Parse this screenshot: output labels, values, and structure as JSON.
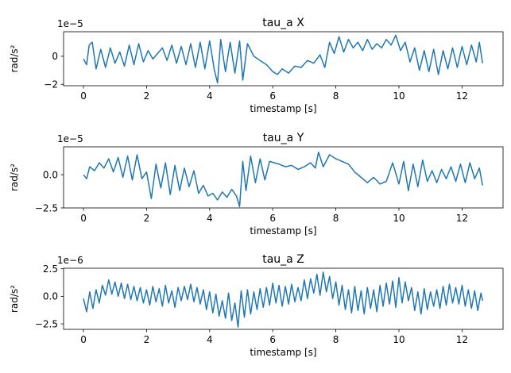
{
  "chart_data": [
    {
      "type": "line",
      "title": "tau_a X",
      "xlabel": "timestamp [s]",
      "ylabel": "rad/s²",
      "offset_text": "1e−5",
      "xlim": [
        -0.63,
        13.3
      ],
      "ylim": [
        -2.1,
        1.75
      ],
      "x_ticks": [
        0,
        2,
        4,
        6,
        8,
        10,
        12
      ],
      "y_ticks": [
        -2,
        0
      ],
      "x_tick_labels": [
        "0",
        "2",
        "4",
        "6",
        "8",
        "10",
        "12"
      ],
      "y_tick_labels": [
        "−2",
        "0"
      ],
      "series_color": "#1f77b4",
      "series": [
        {
          "x": [
            0.0,
            0.1,
            0.18,
            0.28,
            0.4,
            0.55,
            0.7,
            0.85,
            1.0,
            1.15,
            1.3,
            1.45,
            1.6,
            1.75,
            1.9,
            2.05,
            2.2,
            2.35,
            2.5,
            2.65,
            2.8,
            2.95,
            3.1,
            3.25,
            3.4,
            3.55,
            3.7,
            3.85,
            4.0,
            4.15,
            4.25,
            4.35,
            4.5,
            4.65,
            4.8,
            4.95,
            5.05,
            5.2,
            5.4,
            5.6,
            5.8,
            6.0,
            6.15,
            6.3,
            6.5,
            6.7,
            6.9,
            7.1,
            7.3,
            7.5,
            7.65,
            7.8,
            7.95,
            8.1,
            8.25,
            8.4,
            8.55,
            8.7,
            8.85,
            9.0,
            9.15,
            9.3,
            9.45,
            9.6,
            9.75,
            9.9,
            10.05,
            10.2,
            10.35,
            10.5,
            10.65,
            10.8,
            10.95,
            11.1,
            11.25,
            11.4,
            11.55,
            11.7,
            11.85,
            12.0,
            12.15,
            12.3,
            12.45,
            12.55,
            12.65
          ],
          "y": [
            -0.2,
            -0.6,
            0.8,
            1.0,
            -0.9,
            0.5,
            -0.8,
            0.6,
            -0.5,
            0.3,
            -0.7,
            0.8,
            -0.6,
            0.9,
            -0.4,
            0.4,
            -0.2,
            0.2,
            0.6,
            -0.3,
            0.8,
            -0.5,
            0.7,
            -0.6,
            0.9,
            -0.8,
            1.0,
            -0.9,
            1.1,
            -1.0,
            -1.9,
            1.2,
            -1.1,
            1.0,
            -1.2,
            1.1,
            -1.7,
            0.9,
            0.0,
            -0.3,
            -0.6,
            -1.1,
            -1.3,
            -0.9,
            -1.2,
            -0.7,
            -0.8,
            -0.3,
            -0.5,
            0.1,
            -0.8,
            1.0,
            0.2,
            1.4,
            0.3,
            1.2,
            0.6,
            1.0,
            0.4,
            1.2,
            0.5,
            0.9,
            0.6,
            1.2,
            0.8,
            1.5,
            0.4,
            1.0,
            -0.4,
            0.6,
            -1.0,
            0.4,
            -1.1,
            0.5,
            -1.3,
            0.4,
            -0.9,
            0.6,
            -0.8,
            0.7,
            -0.6,
            0.8,
            -0.4,
            1.0,
            -0.5
          ]
        }
      ]
    },
    {
      "type": "line",
      "title": "tau_a Y",
      "xlabel": "timestamp [s]",
      "ylabel": "rad/s²",
      "offset_text": "1e−5",
      "xlim": [
        -0.63,
        13.3
      ],
      "ylim": [
        -2.5,
        2.1
      ],
      "x_ticks": [
        0,
        2,
        4,
        6,
        8,
        10,
        12
      ],
      "y_ticks": [
        -2.5,
        0
      ],
      "x_tick_labels": [
        "0",
        "2",
        "4",
        "6",
        "8",
        "10",
        "12"
      ],
      "y_tick_labels": [
        "−2.5",
        "0.0"
      ],
      "series_color": "#1f77b4",
      "series": [
        {
          "x": [
            0.0,
            0.1,
            0.2,
            0.35,
            0.5,
            0.65,
            0.8,
            0.95,
            1.1,
            1.25,
            1.4,
            1.55,
            1.7,
            1.85,
            2.0,
            2.15,
            2.3,
            2.45,
            2.6,
            2.75,
            2.9,
            3.05,
            3.2,
            3.35,
            3.5,
            3.65,
            3.8,
            3.95,
            4.1,
            4.25,
            4.4,
            4.55,
            4.7,
            4.85,
            4.95,
            5.05,
            5.15,
            5.3,
            5.45,
            5.6,
            5.75,
            5.9,
            6.05,
            6.2,
            6.4,
            6.6,
            6.8,
            7.0,
            7.2,
            7.35,
            7.45,
            7.6,
            7.8,
            8.0,
            8.2,
            8.4,
            8.6,
            8.8,
            9.0,
            9.2,
            9.4,
            9.6,
            9.8,
            10.0,
            10.15,
            10.3,
            10.45,
            10.6,
            10.75,
            10.9,
            11.05,
            11.2,
            11.35,
            11.5,
            11.65,
            11.8,
            11.95,
            12.1,
            12.25,
            12.4,
            12.55,
            12.65
          ],
          "y": [
            0.0,
            -0.3,
            0.6,
            0.3,
            0.9,
            0.5,
            1.2,
            0.2,
            1.3,
            -0.2,
            1.4,
            -0.4,
            1.5,
            -0.3,
            0.2,
            -1.8,
            0.8,
            -1.0,
            0.9,
            -1.5,
            0.7,
            -1.2,
            0.5,
            -0.9,
            0.3,
            -1.4,
            -0.8,
            -1.6,
            -1.4,
            -1.9,
            -1.3,
            -1.7,
            -1.1,
            -1.6,
            -2.4,
            1.0,
            -1.2,
            1.4,
            -0.6,
            1.2,
            -0.4,
            1.0,
            0.9,
            0.8,
            0.6,
            0.7,
            0.4,
            0.6,
            0.9,
            0.5,
            1.7,
            0.6,
            1.5,
            1.2,
            1.0,
            0.8,
            0.2,
            -0.2,
            -0.6,
            -0.2,
            -0.7,
            -0.5,
            0.9,
            -0.7,
            1.0,
            -1.2,
            0.8,
            -0.9,
            1.1,
            -0.5,
            0.3,
            -0.6,
            0.4,
            -0.3,
            0.6,
            -0.5,
            0.8,
            -0.6,
            0.9,
            -0.3,
            0.5,
            -0.8
          ]
        }
      ]
    },
    {
      "type": "line",
      "title": "tau_a Z",
      "xlabel": "timestamp [s]",
      "ylabel": "rad/s²",
      "offset_text": "1e−6",
      "xlim": [
        -0.63,
        13.3
      ],
      "ylim": [
        -3.0,
        2.55
      ],
      "x_ticks": [
        0,
        2,
        4,
        6,
        8,
        10,
        12
      ],
      "y_ticks": [
        -2.5,
        0,
        2.5
      ],
      "x_tick_labels": [
        "0",
        "2",
        "4",
        "6",
        "8",
        "10",
        "12"
      ],
      "y_tick_labels": [
        "−2.5",
        "0.0",
        "2.5"
      ],
      "series_color": "#1f77b4",
      "series": [
        {
          "x": [
            0.0,
            0.1,
            0.2,
            0.3,
            0.4,
            0.5,
            0.6,
            0.7,
            0.8,
            0.9,
            1.0,
            1.1,
            1.2,
            1.3,
            1.4,
            1.5,
            1.6,
            1.7,
            1.8,
            1.9,
            2.0,
            2.1,
            2.2,
            2.3,
            2.4,
            2.5,
            2.6,
            2.7,
            2.8,
            2.9,
            3.0,
            3.1,
            3.2,
            3.3,
            3.4,
            3.5,
            3.6,
            3.7,
            3.8,
            3.9,
            4.0,
            4.1,
            4.2,
            4.3,
            4.4,
            4.5,
            4.6,
            4.7,
            4.8,
            4.9,
            5.0,
            5.1,
            5.2,
            5.3,
            5.4,
            5.5,
            5.6,
            5.7,
            5.8,
            5.9,
            6.0,
            6.1,
            6.2,
            6.3,
            6.4,
            6.5,
            6.6,
            6.7,
            6.8,
            6.9,
            7.0,
            7.1,
            7.2,
            7.3,
            7.4,
            7.5,
            7.6,
            7.7,
            7.8,
            7.9,
            8.0,
            8.1,
            8.2,
            8.3,
            8.4,
            8.5,
            8.6,
            8.7,
            8.8,
            8.9,
            9.0,
            9.1,
            9.2,
            9.3,
            9.4,
            9.5,
            9.6,
            9.7,
            9.8,
            9.9,
            10.0,
            10.1,
            10.2,
            10.3,
            10.4,
            10.5,
            10.6,
            10.7,
            10.8,
            10.9,
            11.0,
            11.1,
            11.2,
            11.3,
            11.4,
            11.5,
            11.6,
            11.7,
            11.8,
            11.9,
            12.0,
            12.1,
            12.2,
            12.3,
            12.4,
            12.5,
            12.6,
            12.65
          ],
          "y": [
            -0.2,
            -1.4,
            0.4,
            -1.1,
            0.6,
            -0.6,
            1.0,
            0.1,
            1.5,
            0.2,
            1.3,
            0.0,
            1.2,
            -0.2,
            1.1,
            -0.3,
            0.9,
            -0.4,
            0.8,
            -0.6,
            0.6,
            -0.8,
            0.9,
            -0.5,
            0.7,
            -0.9,
            1.0,
            -0.6,
            0.5,
            -1.0,
            0.8,
            -0.4,
            0.9,
            -0.3,
            1.1,
            -0.5,
            0.8,
            -0.7,
            0.6,
            -1.2,
            0.4,
            -1.5,
            0.2,
            -1.8,
            -0.4,
            -2.0,
            0.3,
            -2.2,
            -0.6,
            -2.8,
            0.5,
            -1.9,
            0.6,
            -1.6,
            0.4,
            -1.2,
            0.7,
            -1.0,
            0.8,
            -0.8,
            1.2,
            -0.6,
            1.0,
            -0.9,
            0.9,
            -0.7,
            1.1,
            -0.5,
            0.8,
            -0.4,
            1.5,
            -0.2,
            1.6,
            0.3,
            2.0,
            0.1,
            2.2,
            0.4,
            1.8,
            -0.2,
            1.3,
            -0.8,
            1.0,
            -1.2,
            0.6,
            -1.5,
            0.9,
            -1.3,
            0.5,
            -1.6,
            0.8,
            -1.1,
            0.6,
            -1.4,
            1.0,
            -0.9,
            1.2,
            -0.7,
            1.4,
            -1.0,
            1.7,
            -0.6,
            1.3,
            -0.4,
            0.8,
            -1.3,
            0.4,
            -1.6,
            0.7,
            -1.2,
            0.4,
            -0.9,
            0.6,
            -1.1,
            0.9,
            -0.8,
            1.1,
            -0.6,
            0.8,
            -0.7,
            1.0,
            -0.9,
            0.6,
            -1.1,
            0.5,
            -1.3,
            0.3,
            -0.4
          ]
        }
      ]
    }
  ]
}
